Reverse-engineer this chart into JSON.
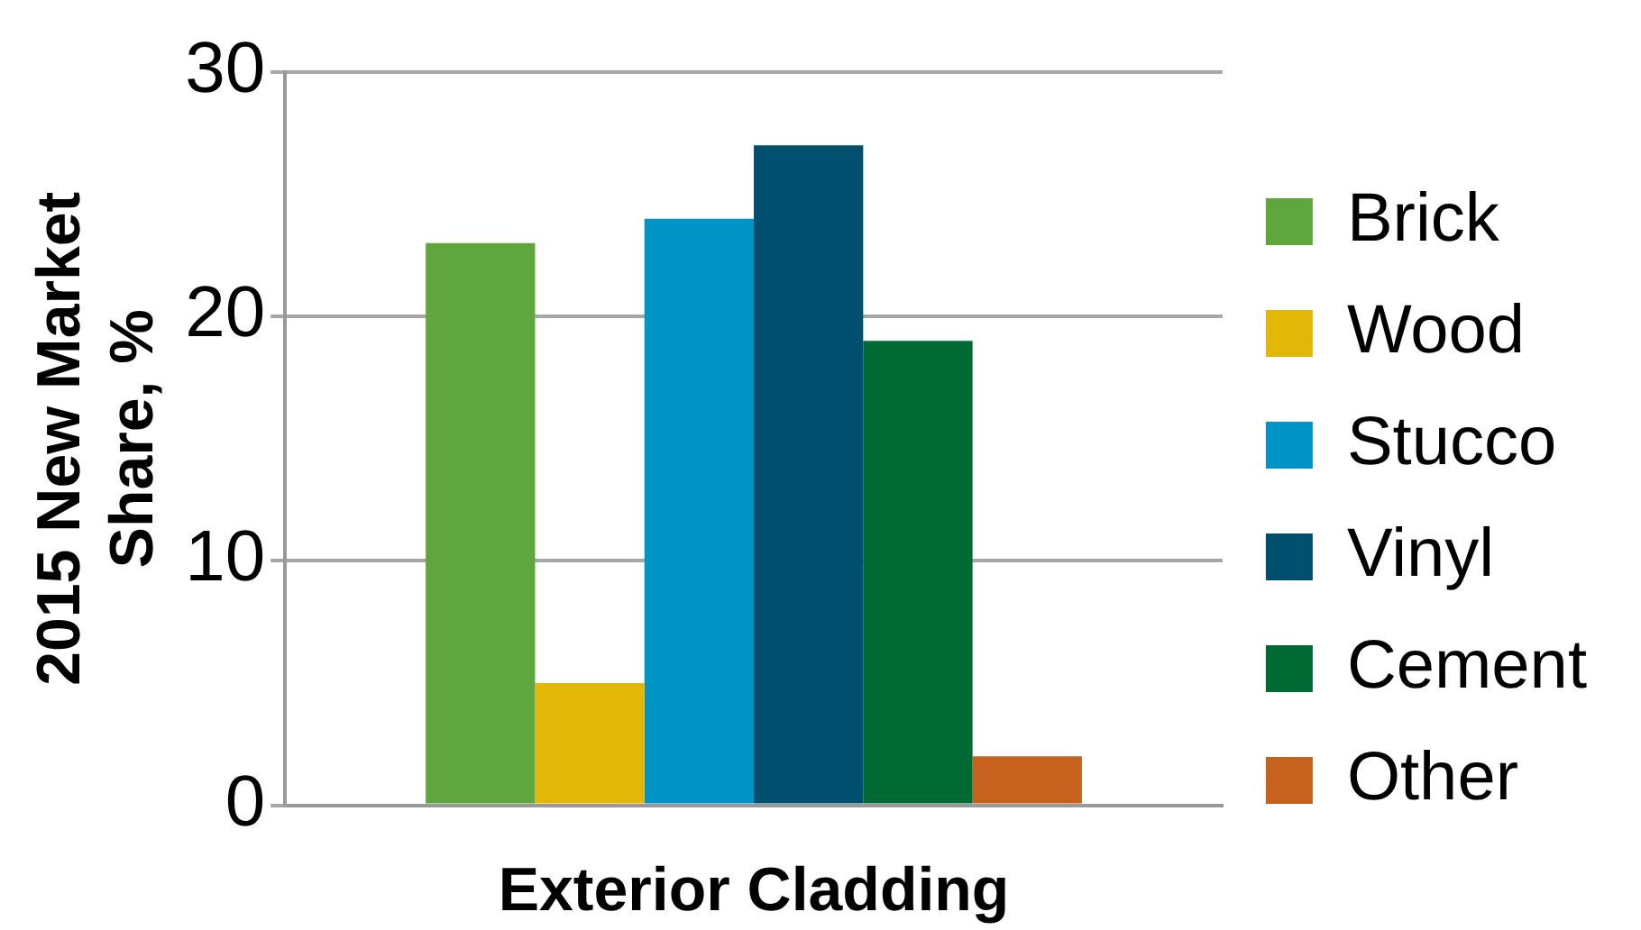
{
  "chart_data": {
    "type": "bar",
    "categories": [
      null
    ],
    "xlabel": "Exterior Cladding",
    "ylabel": "2015 New Market Share, %",
    "ylim": [
      0,
      30
    ],
    "yticks": [
      0,
      10,
      20,
      30
    ],
    "grid": "y",
    "legend": "right",
    "series": [
      {
        "name": "Brick",
        "color": "#5fa63e",
        "values": [
          23
        ]
      },
      {
        "name": "Wood",
        "color": "#e2b707",
        "values": [
          5
        ]
      },
      {
        "name": "Stucco",
        "color": "#0094c6",
        "values": [
          24
        ]
      },
      {
        "name": "Vinyl",
        "color": "#004f6f",
        "values": [
          27
        ]
      },
      {
        "name": "Cement",
        "color": "#006a35",
        "values": [
          19
        ]
      },
      {
        "name": "Other",
        "color": "#c7621e",
        "values": [
          2
        ]
      }
    ]
  }
}
